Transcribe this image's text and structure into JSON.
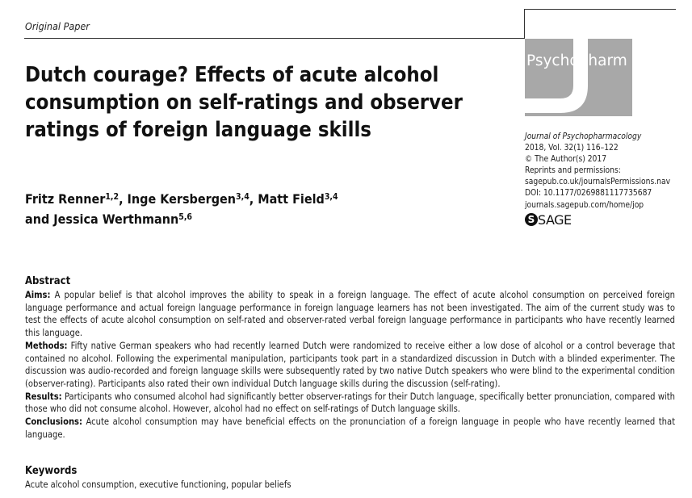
{
  "header": {
    "section_label": "Original Paper"
  },
  "journal_logo": {
    "text": "Psychopharm",
    "color": "#a8a8a8"
  },
  "title": "Dutch courage? Effects of acute alcohol consumption on self-ratings and observer ratings of foreign language skills",
  "authors": [
    {
      "name": "Fritz Renner",
      "affil": "1,2",
      "sep": ", "
    },
    {
      "name": "Inge Kersbergen",
      "affil": "3,4",
      "sep": ", "
    },
    {
      "name": "Matt Field",
      "affil": "3,4",
      "sep": " and "
    },
    {
      "name": "Jessica Werthmann",
      "affil": "5,6",
      "sep": ""
    }
  ],
  "meta": {
    "journal": "Journal of Psychopharmacology",
    "volume": "2018, Vol. 32(1) 116–122",
    "copyright": "© The Author(s) 2017",
    "reprints_label": "Reprints and permissions:",
    "reprints_url": "sagepub.co.uk/journalsPermissions.nav",
    "doi": "DOI: 10.1177/0269881117735687",
    "journal_url": "journals.sagepub.com/home/jop"
  },
  "publisher_logo": {
    "letter": "S",
    "text": "SAGE"
  },
  "abstract": {
    "heading": "Abstract",
    "sections": [
      {
        "label": "Aims:",
        "text": "A popular belief is that alcohol improves the ability to speak in a foreign language. The effect of acute alcohol consumption on perceived foreign language performance and actual foreign language performance in foreign language learners has not been investigated. The aim of the current study was to test the effects of acute alcohol consumption on self-rated and observer-rated verbal foreign language performance in participants who have recently learned this language."
      },
      {
        "label": "Methods:",
        "text": "Fifty native German speakers who had recently learned Dutch were randomized to receive either a low dose of alcohol or a control beverage that contained no alcohol. Following the experimental manipulation, participants took part in a standardized discussion in Dutch with a blinded experimenter. The discussion was audio-recorded and foreign language skills were subsequently rated by two native Dutch speakers who were blind to the experimental condition (observer-rating). Participants also rated their own individual Dutch language skills during the discussion (self-rating)."
      },
      {
        "label": "Results:",
        "text": "Participants who consumed alcohol had significantly better observer-ratings for their Dutch language, specifically better pronunciation, compared with those who did not consume alcohol. However, alcohol had no effect on self-ratings of Dutch language skills."
      },
      {
        "label": "Conclusions:",
        "text": "Acute alcohol consumption may have beneficial effects on the pronunciation of a foreign language in people who have recently learned that language."
      }
    ]
  },
  "keywords": {
    "heading": "Keywords",
    "text": "Acute alcohol consumption, executive functioning, popular beliefs"
  }
}
